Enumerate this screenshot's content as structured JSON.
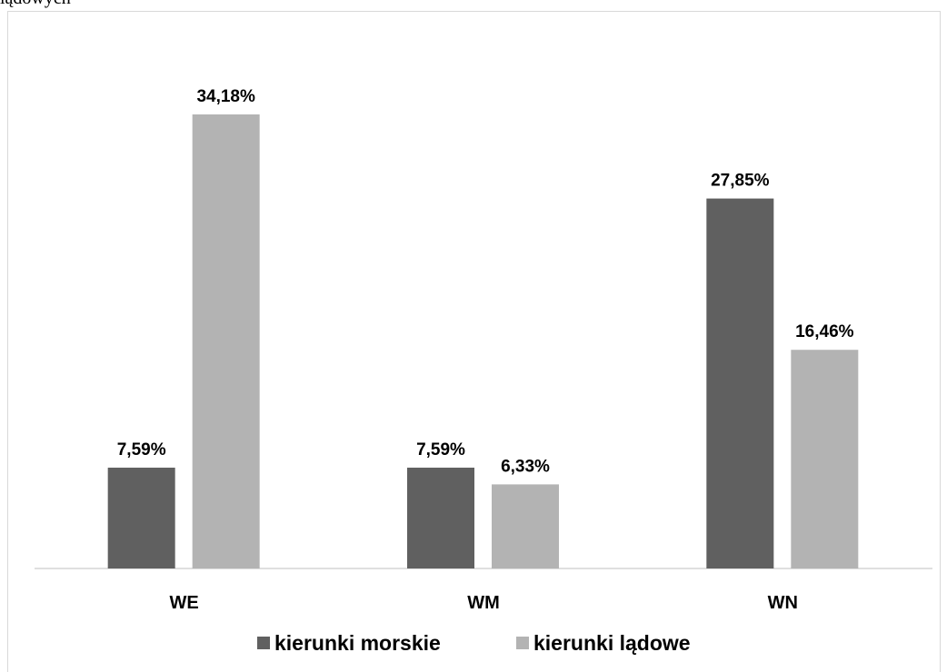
{
  "chart_data": {
    "type": "bar",
    "title": "lądowych",
    "categories": [
      "WE",
      "WM",
      "WN"
    ],
    "series": [
      {
        "name": "kierunki morskie",
        "color": "#606060",
        "values": [
          7.59,
          7.59,
          27.85
        ],
        "value_labels": [
          "7,59%",
          "7,59%",
          "27,85%"
        ]
      },
      {
        "name": "kierunki lądowe",
        "color": "#b3b3b3",
        "values": [
          34.18,
          6.33,
          16.46
        ],
        "value_labels": [
          "34,18%",
          "6,33%",
          "16,46%"
        ]
      }
    ],
    "ylim": [
      0,
      35
    ],
    "legend": "bottom"
  }
}
